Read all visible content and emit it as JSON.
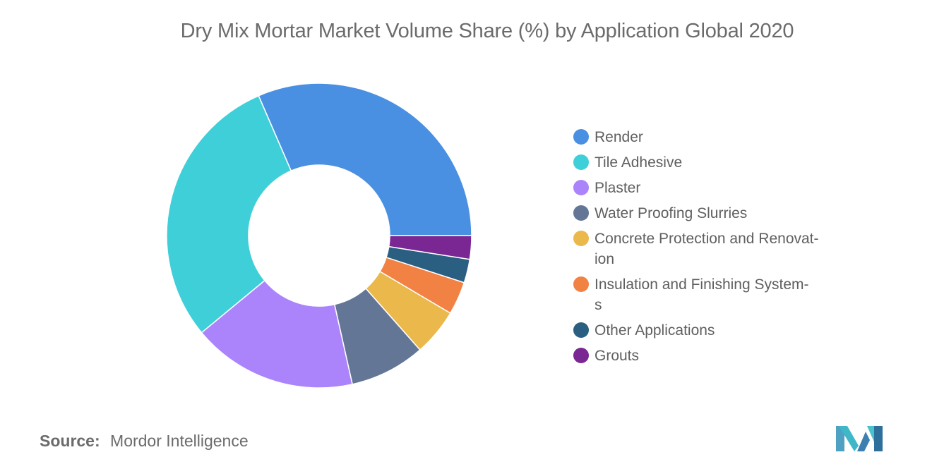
{
  "title": "Dry Mix Mortar Market Volume Share (%) by Application Global 2020",
  "source": {
    "label": "Source:",
    "value": "Mordor Intelligence"
  },
  "logo_icon": "mordor-intelligence-logo",
  "chart_data": {
    "type": "pie",
    "variant": "donut",
    "title": "Dry Mix Mortar Market Volume Share (%) by Application Global 2020",
    "legend_position": "right",
    "series": [
      {
        "name": "Render",
        "value": 31.5,
        "color": "#4a90e2"
      },
      {
        "name": "Tile Adhesive",
        "value": 29.5,
        "color": "#3fcfd9"
      },
      {
        "name": "Plaster",
        "value": 17.5,
        "color": "#ab84fb"
      },
      {
        "name": "Water Proofing Slurries",
        "value": 8.0,
        "color": "#647696"
      },
      {
        "name": "Concrete Protection and Renovat-ion",
        "value": 5.0,
        "color": "#ebb84b"
      },
      {
        "name": "Insulation and Finishing System-s",
        "value": 3.5,
        "color": "#f28244"
      },
      {
        "name": "Other Applications",
        "value": 2.5,
        "color": "#2a5f82"
      },
      {
        "name": "Grouts",
        "value": 2.5,
        "color": "#7a2793"
      }
    ]
  }
}
